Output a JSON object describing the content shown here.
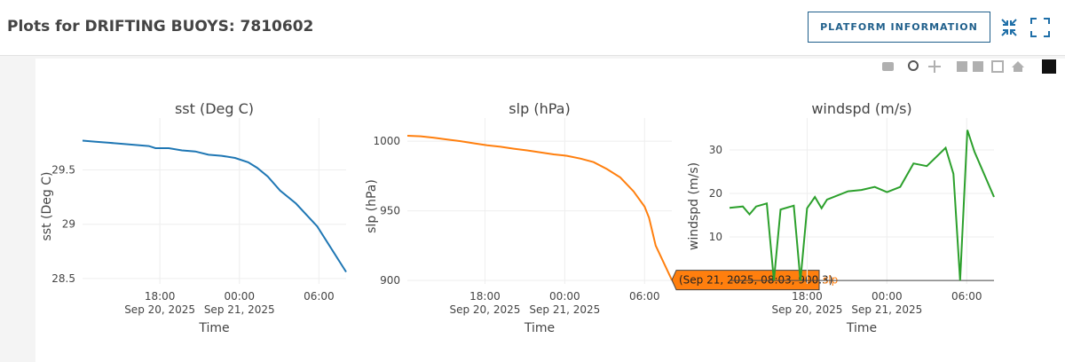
{
  "header": {
    "title": "Plots for DRIFTING BUOYS: 7810602",
    "button": "PLATFORM INFORMATION"
  },
  "chart_data": [
    {
      "type": "line",
      "title": "sst (Deg C)",
      "x_label": "Time",
      "y_label": "sst (Deg C)",
      "x": [
        "2025-09-20 12:10",
        "2025-09-20 13:10",
        "2025-09-20 14:10",
        "2025-09-20 15:10",
        "2025-09-20 16:10",
        "2025-09-20 17:10",
        "2025-09-20 17:40",
        "2025-09-20 18:40",
        "2025-09-20 19:40",
        "2025-09-20 20:40",
        "2025-09-20 21:40",
        "2025-09-20 22:40",
        "2025-09-20 23:40",
        "2025-09-21 00:40",
        "2025-09-21 01:20",
        "2025-09-21 02:08",
        "2025-09-21 03:04",
        "2025-09-21 04:16",
        "2025-09-21 05:52",
        "2025-09-21 08:03"
      ],
      "series": [
        {
          "color": "#1f77b4",
          "values": [
            29.77,
            29.76,
            29.75,
            29.74,
            29.73,
            29.72,
            29.7,
            29.7,
            29.68,
            29.67,
            29.64,
            29.63,
            29.61,
            29.57,
            29.52,
            29.44,
            29.31,
            29.19,
            28.98,
            28.56
          ]
        }
      ],
      "xlim": [
        "2025-09-20 12:10",
        "2025-09-21 08:03"
      ],
      "xticks": [
        {
          "value": "2025-09-20 18:00",
          "label": "18:00",
          "date": "Sep 20, 2025"
        },
        {
          "value": "2025-09-21 00:00",
          "label": "00:00",
          "date": "Sep 21, 2025"
        },
        {
          "value": "2025-09-21 06:00",
          "label": "06:00"
        }
      ],
      "ylim": [
        28.45,
        29.88
      ],
      "yticks": [
        28.5,
        29,
        29.5
      ],
      "grid": true
    },
    {
      "type": "line",
      "title": "slp (hPa)",
      "x_label": "Time",
      "y_label": "slp (hPa)",
      "x": [
        "2025-09-20 12:10",
        "2025-09-20 13:10",
        "2025-09-20 14:10",
        "2025-09-20 15:10",
        "2025-09-20 16:10",
        "2025-09-20 17:10",
        "2025-09-20 18:10",
        "2025-09-20 19:10",
        "2025-09-20 20:10",
        "2025-09-20 21:10",
        "2025-09-20 22:10",
        "2025-09-20 23:10",
        "2025-09-21 00:10",
        "2025-09-21 01:10",
        "2025-09-21 02:10",
        "2025-09-21 03:10",
        "2025-09-21 04:10",
        "2025-09-21 05:10",
        "2025-09-21 06:00",
        "2025-09-21 06:20",
        "2025-09-21 06:50",
        "2025-09-21 08:03"
      ],
      "series": [
        {
          "name": "slp",
          "color": "#ff7f0e",
          "values": [
            1003.9,
            1003.5,
            1002.5,
            1001.2,
            1000,
            998.5,
            997,
            996,
            994.6,
            993.4,
            992,
            990.5,
            989.5,
            987.5,
            985,
            980,
            974,
            964,
            953,
            945,
            925,
            900.3
          ]
        }
      ],
      "xlim": [
        "2025-09-20 12:10",
        "2025-09-21 08:03"
      ],
      "xticks": [
        {
          "value": "2025-09-20 18:00",
          "label": "18:00",
          "date": "Sep 20, 2025"
        },
        {
          "value": "2025-09-21 00:00",
          "label": "00:00",
          "date": "Sep 21, 2025"
        },
        {
          "value": "2025-09-21 06:00",
          "label": "06:00"
        }
      ],
      "ylim": [
        897.5,
        1009
      ],
      "yticks": [
        900,
        950,
        1000
      ],
      "grid": true,
      "hover_label": "(Sep 21, 2025, 08:03, 900.3)"
    },
    {
      "type": "line",
      "title": "windspd (m/s)",
      "x_label": "Time",
      "y_label": "windspd (m/s)",
      "x": [
        "2025-09-20 12:10",
        "2025-09-20 13:10",
        "2025-09-20 13:40",
        "2025-09-20 14:10",
        "2025-09-20 14:58",
        "2025-09-20 15:30",
        "2025-09-20 16:00",
        "2025-09-20 17:00",
        "2025-09-20 17:30",
        "2025-09-20 18:00",
        "2025-09-20 18:35",
        "2025-09-20 19:05",
        "2025-09-20 19:30",
        "2025-09-20 21:05",
        "2025-09-20 22:05",
        "2025-09-20 23:05",
        "2025-09-21 00:00",
        "2025-09-21 01:00",
        "2025-09-21 02:00",
        "2025-09-21 03:00",
        "2025-09-21 04:25",
        "2025-09-21 05:00",
        "2025-09-21 05:30",
        "2025-09-21 06:03",
        "2025-09-21 06:35",
        "2025-09-21 08:03"
      ],
      "series": [
        {
          "color": "#2ca02c",
          "values": [
            16.7,
            17.0,
            15.2,
            17.0,
            17.7,
            0,
            16.3,
            17.2,
            0,
            16.6,
            19.2,
            16.6,
            18.6,
            20.5,
            20.8,
            21.5,
            20.3,
            21.5,
            26.9,
            26.3,
            30.5,
            24.5,
            0,
            34.6,
            29.6,
            19.2
          ]
        }
      ],
      "xlim": [
        "2025-09-20 12:10",
        "2025-09-21 08:03"
      ],
      "xticks": [
        {
          "value": "2025-09-20 18:00",
          "label": "18:00",
          "date": "Sep 20, 2025"
        },
        {
          "value": "2025-09-21 00:00",
          "label": "00:00",
          "date": "Sep 21, 2025"
        },
        {
          "value": "2025-09-21 06:00",
          "label": "06:00"
        }
      ],
      "ylim": [
        -0.8,
        34.9
      ],
      "yticks": [
        10,
        20,
        30
      ],
      "grid": true,
      "zeroline": true
    }
  ]
}
